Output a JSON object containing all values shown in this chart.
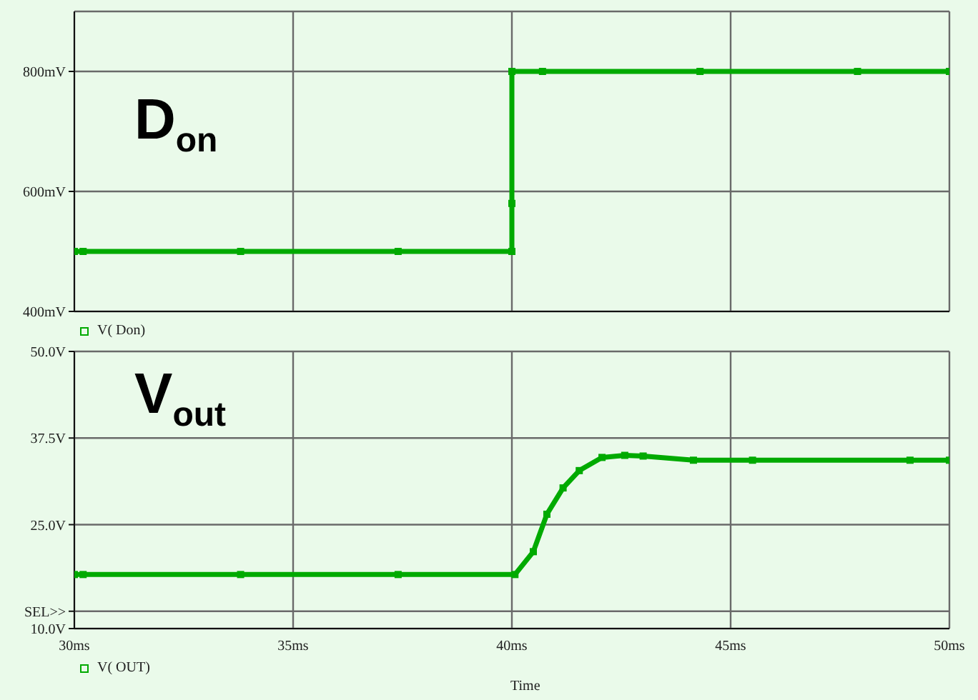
{
  "chart_data": [
    {
      "type": "line",
      "annotations": [
        "D$_{on}$"
      ],
      "xlim": [
        30,
        50
      ],
      "xticks": [
        30,
        35,
        40,
        45,
        50
      ],
      "ylim": [
        400,
        900
      ],
      "yticks": [
        {
          "value": 400,
          "label": "400mV"
        },
        {
          "value": 600,
          "label": "600mV"
        },
        {
          "value": 800,
          "label": "800mV"
        }
      ],
      "tick_labels": "y",
      "grid": true,
      "legend": "bottom left",
      "marker": "square",
      "line_style": "solid",
      "series": [
        {
          "name": "V( Don)",
          "color": "#00aa00",
          "x": [
            30,
            30.2,
            33.8,
            37.4,
            40,
            40,
            40,
            40.7,
            44.3,
            47.9,
            50
          ],
          "values": [
            500,
            500,
            500,
            500,
            500,
            580,
            800,
            800,
            800,
            800,
            800
          ]
        }
      ]
    },
    {
      "type": "line",
      "annotations": [
        "V$_{out}$"
      ],
      "xlabel": "Time",
      "xlim": [
        30,
        50
      ],
      "xticks": [
        {
          "value": 30,
          "label": "30ms"
        },
        {
          "value": 35,
          "label": "35ms"
        },
        {
          "value": 40,
          "label": "40ms"
        },
        {
          "value": 45,
          "label": "45ms"
        },
        {
          "value": 50,
          "label": "50ms"
        }
      ],
      "ylim": [
        10,
        50
      ],
      "yticks": [
        {
          "value": 10,
          "label": "10.0V"
        },
        {
          "value": 12.5,
          "label": "SEL>>"
        },
        {
          "value": 25,
          "label": "25.0V"
        },
        {
          "value": 37.5,
          "label": "37.5V"
        },
        {
          "value": 50,
          "label": "50.0V"
        }
      ],
      "grid": true,
      "legend": "bottom left",
      "marker": "square",
      "line_style": "solid",
      "series": [
        {
          "name": "V( OUT)",
          "color": "#00aa00",
          "x": [
            30,
            30.2,
            33.8,
            37.4,
            40.07,
            40.49,
            40.8,
            41.17,
            41.54,
            42.06,
            42.58,
            43.0,
            44.15,
            45.5,
            49.1,
            50
          ],
          "values": [
            17.8,
            17.8,
            17.8,
            17.8,
            17.8,
            21.1,
            26.5,
            30.3,
            32.8,
            34.7,
            35.0,
            34.9,
            34.3,
            34.3,
            34.3,
            34.3
          ]
        }
      ]
    }
  ]
}
